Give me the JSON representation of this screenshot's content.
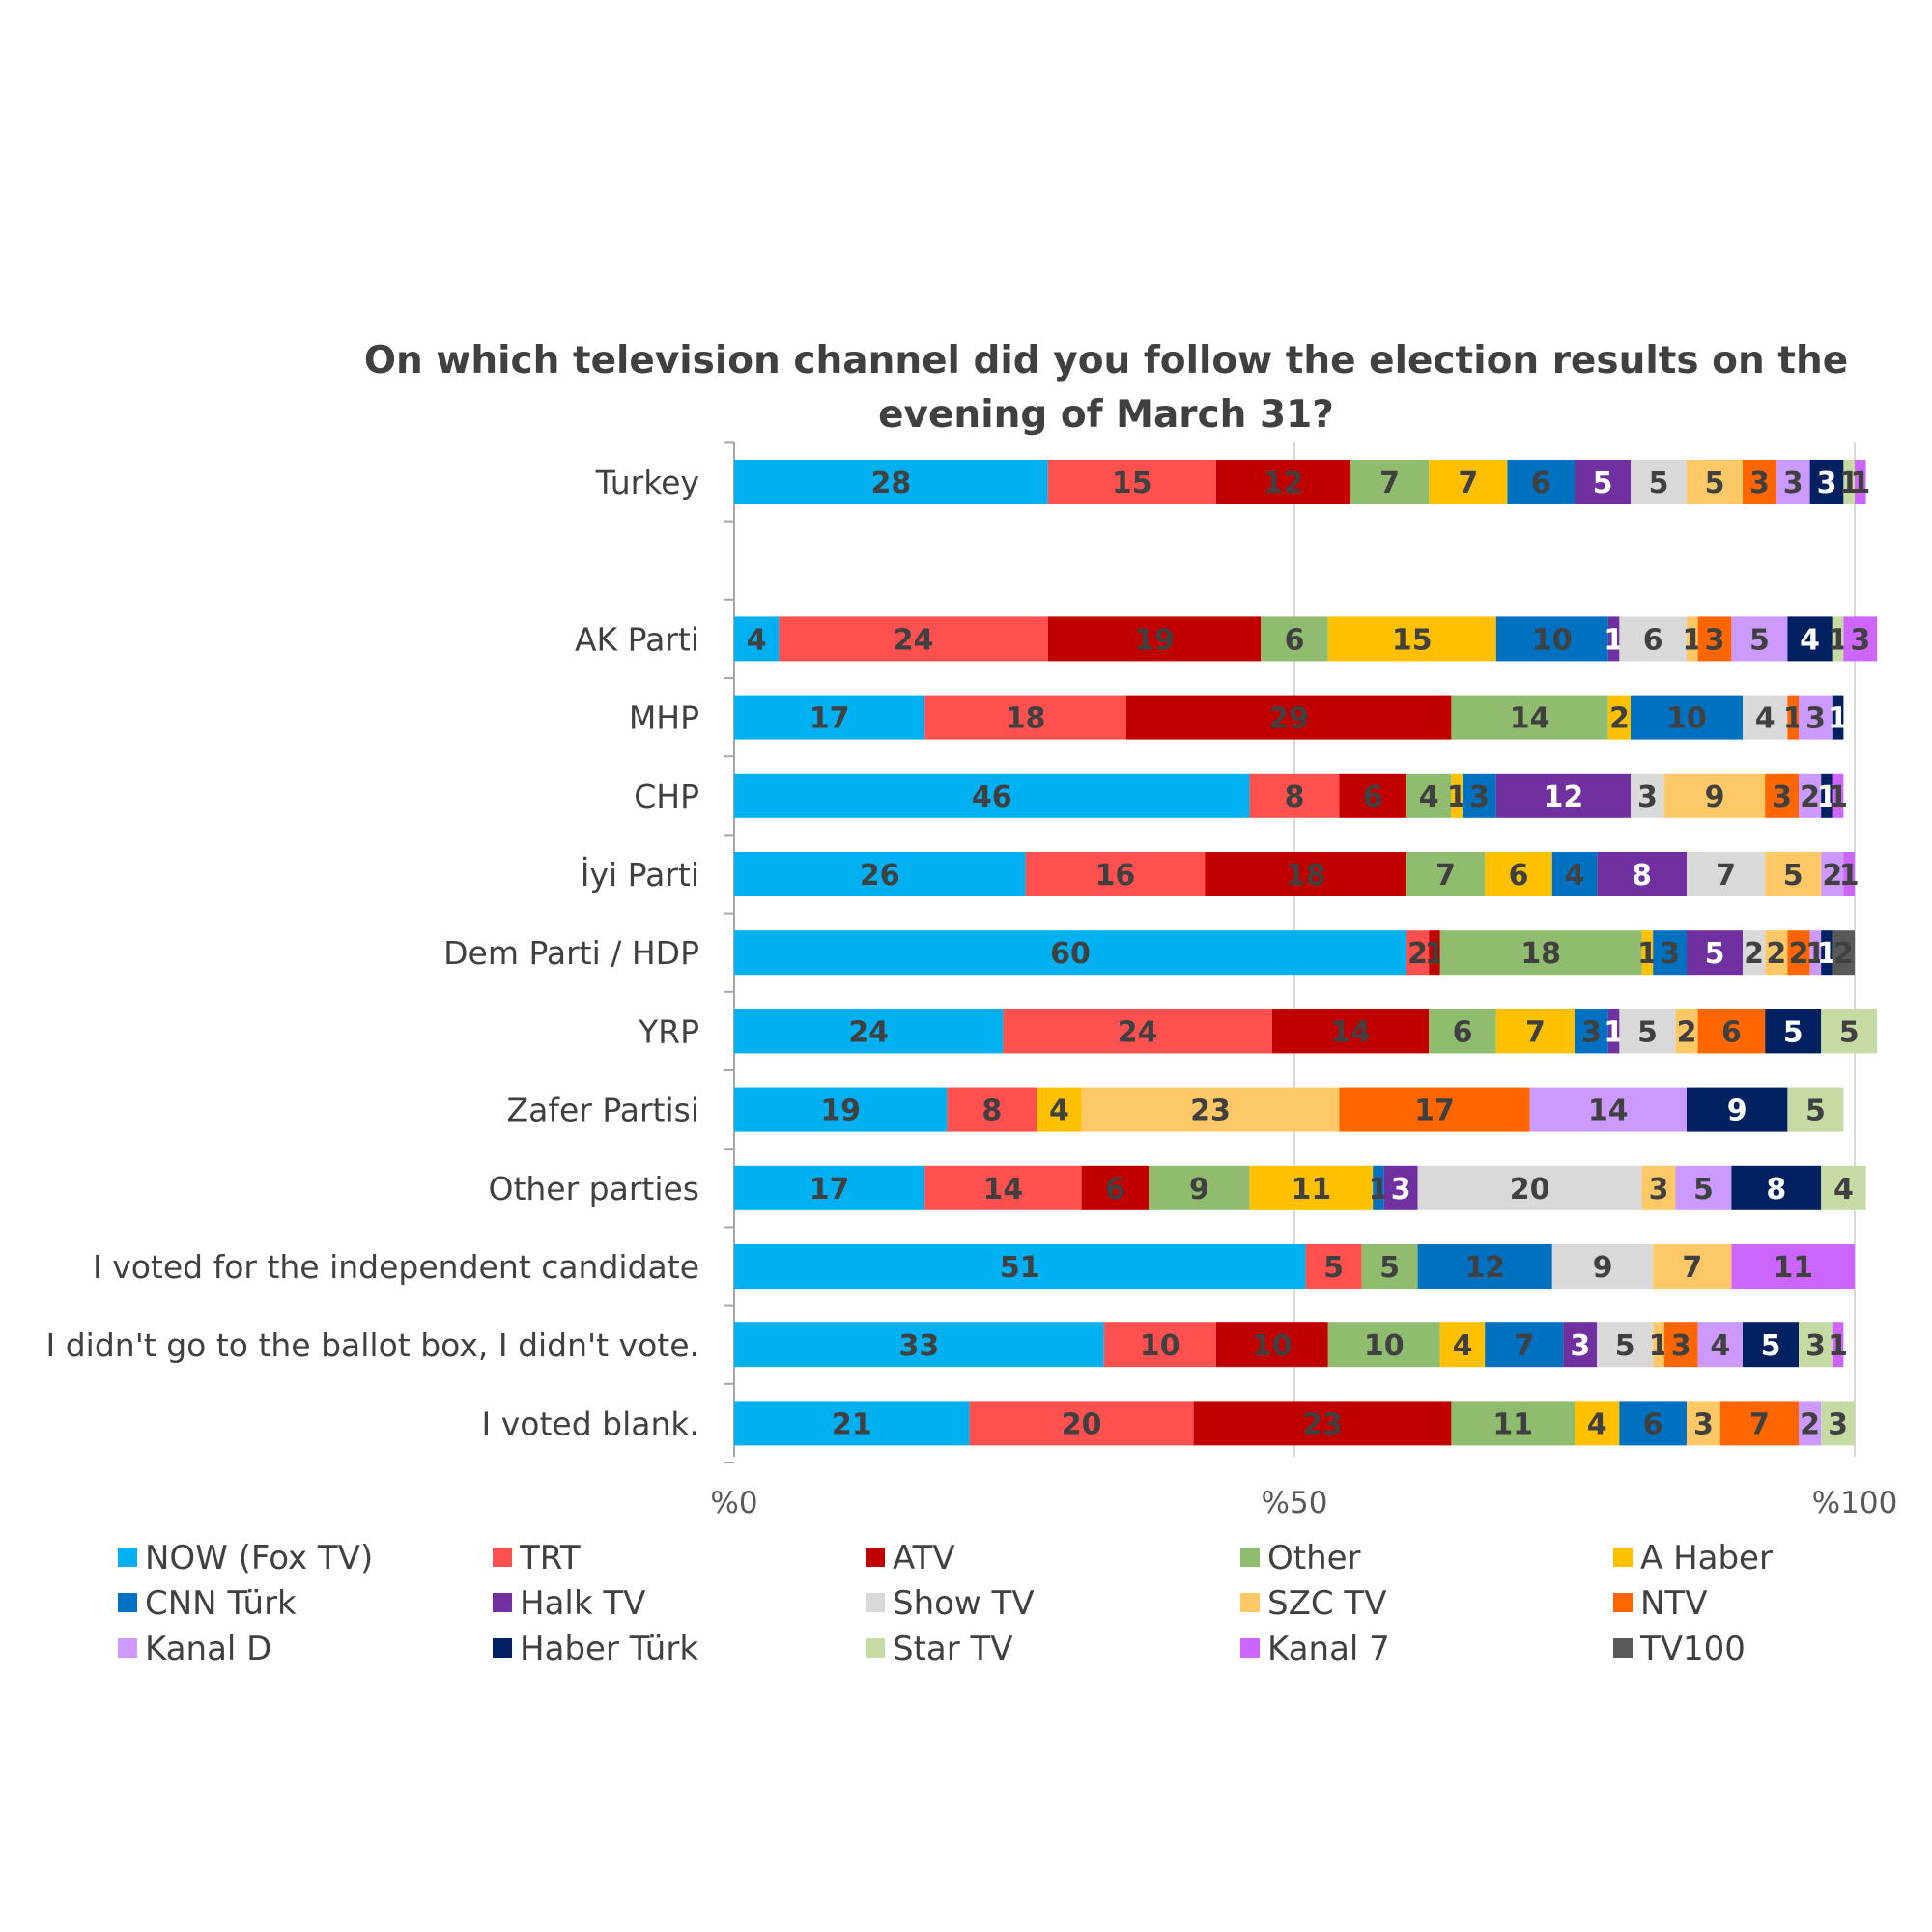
{
  "chart_data": {
    "type": "bar",
    "orientation": "horizontal",
    "stacked": true,
    "title": "On which television channel did you follow the election results on the evening of March 31?",
    "xlim": [
      0,
      100
    ],
    "xticks": [
      "%0",
      "%50",
      "%100"
    ],
    "grid": true,
    "legend_position": "bottom",
    "categories": [
      "Turkey",
      "",
      "AK Parti",
      "MHP",
      "CHP",
      "İyi Parti",
      "Dem Parti / HDP",
      "YRP",
      "Zafer Partisi",
      "Other parties",
      "I voted for the independent candidate",
      "I didn't go to the ballot box, I didn't vote.",
      "I voted blank."
    ],
    "series": [
      {
        "name": "NOW (Fox TV)",
        "color": "#00B0F0",
        "label_color": "#404040",
        "values": [
          28,
          null,
          4,
          17,
          46,
          26,
          60,
          24,
          19,
          17,
          51,
          33,
          21
        ]
      },
      {
        "name": "TRT",
        "color": "#FF5050",
        "label_color": "#404040",
        "values": [
          15,
          null,
          24,
          18,
          8,
          16,
          2,
          24,
          8,
          14,
          5,
          10,
          20
        ]
      },
      {
        "name": "ATV",
        "color": "#C00000",
        "label_color": "#404040",
        "values": [
          12,
          null,
          19,
          29,
          6,
          18,
          1,
          14,
          0,
          6,
          0,
          10,
          23
        ]
      },
      {
        "name": "Other",
        "color": "#8FBC6F",
        "label_color": "#404040",
        "values": [
          7,
          null,
          6,
          14,
          4,
          7,
          18,
          6,
          0,
          9,
          5,
          10,
          11
        ]
      },
      {
        "name": "A Haber",
        "color": "#FFC000",
        "label_color": "#404040",
        "values": [
          7,
          null,
          15,
          2,
          1,
          6,
          1,
          7,
          4,
          11,
          0,
          4,
          4
        ]
      },
      {
        "name": "CNN Türk",
        "color": "#0070C0",
        "label_color": "#404040",
        "values": [
          6,
          null,
          10,
          10,
          3,
          4,
          3,
          3,
          0,
          1,
          12,
          7,
          6
        ]
      },
      {
        "name": "Halk TV",
        "color": "#7030A0",
        "label_color": "#FFFFFF",
        "values": [
          5,
          null,
          1,
          0,
          12,
          8,
          5,
          1,
          0,
          3,
          0,
          3,
          0
        ]
      },
      {
        "name": "Show TV",
        "color": "#D9D9D9",
        "label_color": "#404040",
        "values": [
          5,
          null,
          6,
          4,
          3,
          7,
          2,
          5,
          0,
          20,
          9,
          5,
          0
        ]
      },
      {
        "name": "SZC TV",
        "color": "#FFC866",
        "label_color": "#404040",
        "values": [
          5,
          null,
          1,
          0,
          9,
          5,
          2,
          2,
          23,
          3,
          7,
          1,
          3
        ]
      },
      {
        "name": "NTV",
        "color": "#FF6600",
        "label_color": "#404040",
        "values": [
          3,
          null,
          3,
          1,
          3,
          0,
          2,
          6,
          17,
          0,
          0,
          3,
          7
        ]
      },
      {
        "name": "Kanal D",
        "color": "#CC99FF",
        "label_color": "#404040",
        "values": [
          3,
          null,
          5,
          3,
          2,
          2,
          1,
          0,
          14,
          5,
          0,
          4,
          2
        ]
      },
      {
        "name": "Haber Türk",
        "color": "#002060",
        "label_color": "#FFFFFF",
        "values": [
          3,
          null,
          4,
          1,
          1,
          0,
          1,
          5,
          9,
          8,
          0,
          5,
          0
        ]
      },
      {
        "name": "Star TV",
        "color": "#C5DBA3",
        "label_color": "#404040",
        "values": [
          1,
          null,
          1,
          0,
          0,
          0,
          0,
          5,
          5,
          4,
          0,
          3,
          3
        ]
      },
      {
        "name": "Kanal 7",
        "color": "#CC66FF",
        "label_color": "#404040",
        "values": [
          1,
          null,
          3,
          0,
          1,
          1,
          0,
          0,
          0,
          0,
          11,
          1,
          0
        ]
      },
      {
        "name": "TV100",
        "color": "#595959",
        "label_color": "#404040",
        "values": [
          0,
          null,
          0,
          0,
          0,
          0,
          2,
          0,
          0,
          0,
          0,
          0,
          0
        ]
      }
    ]
  }
}
